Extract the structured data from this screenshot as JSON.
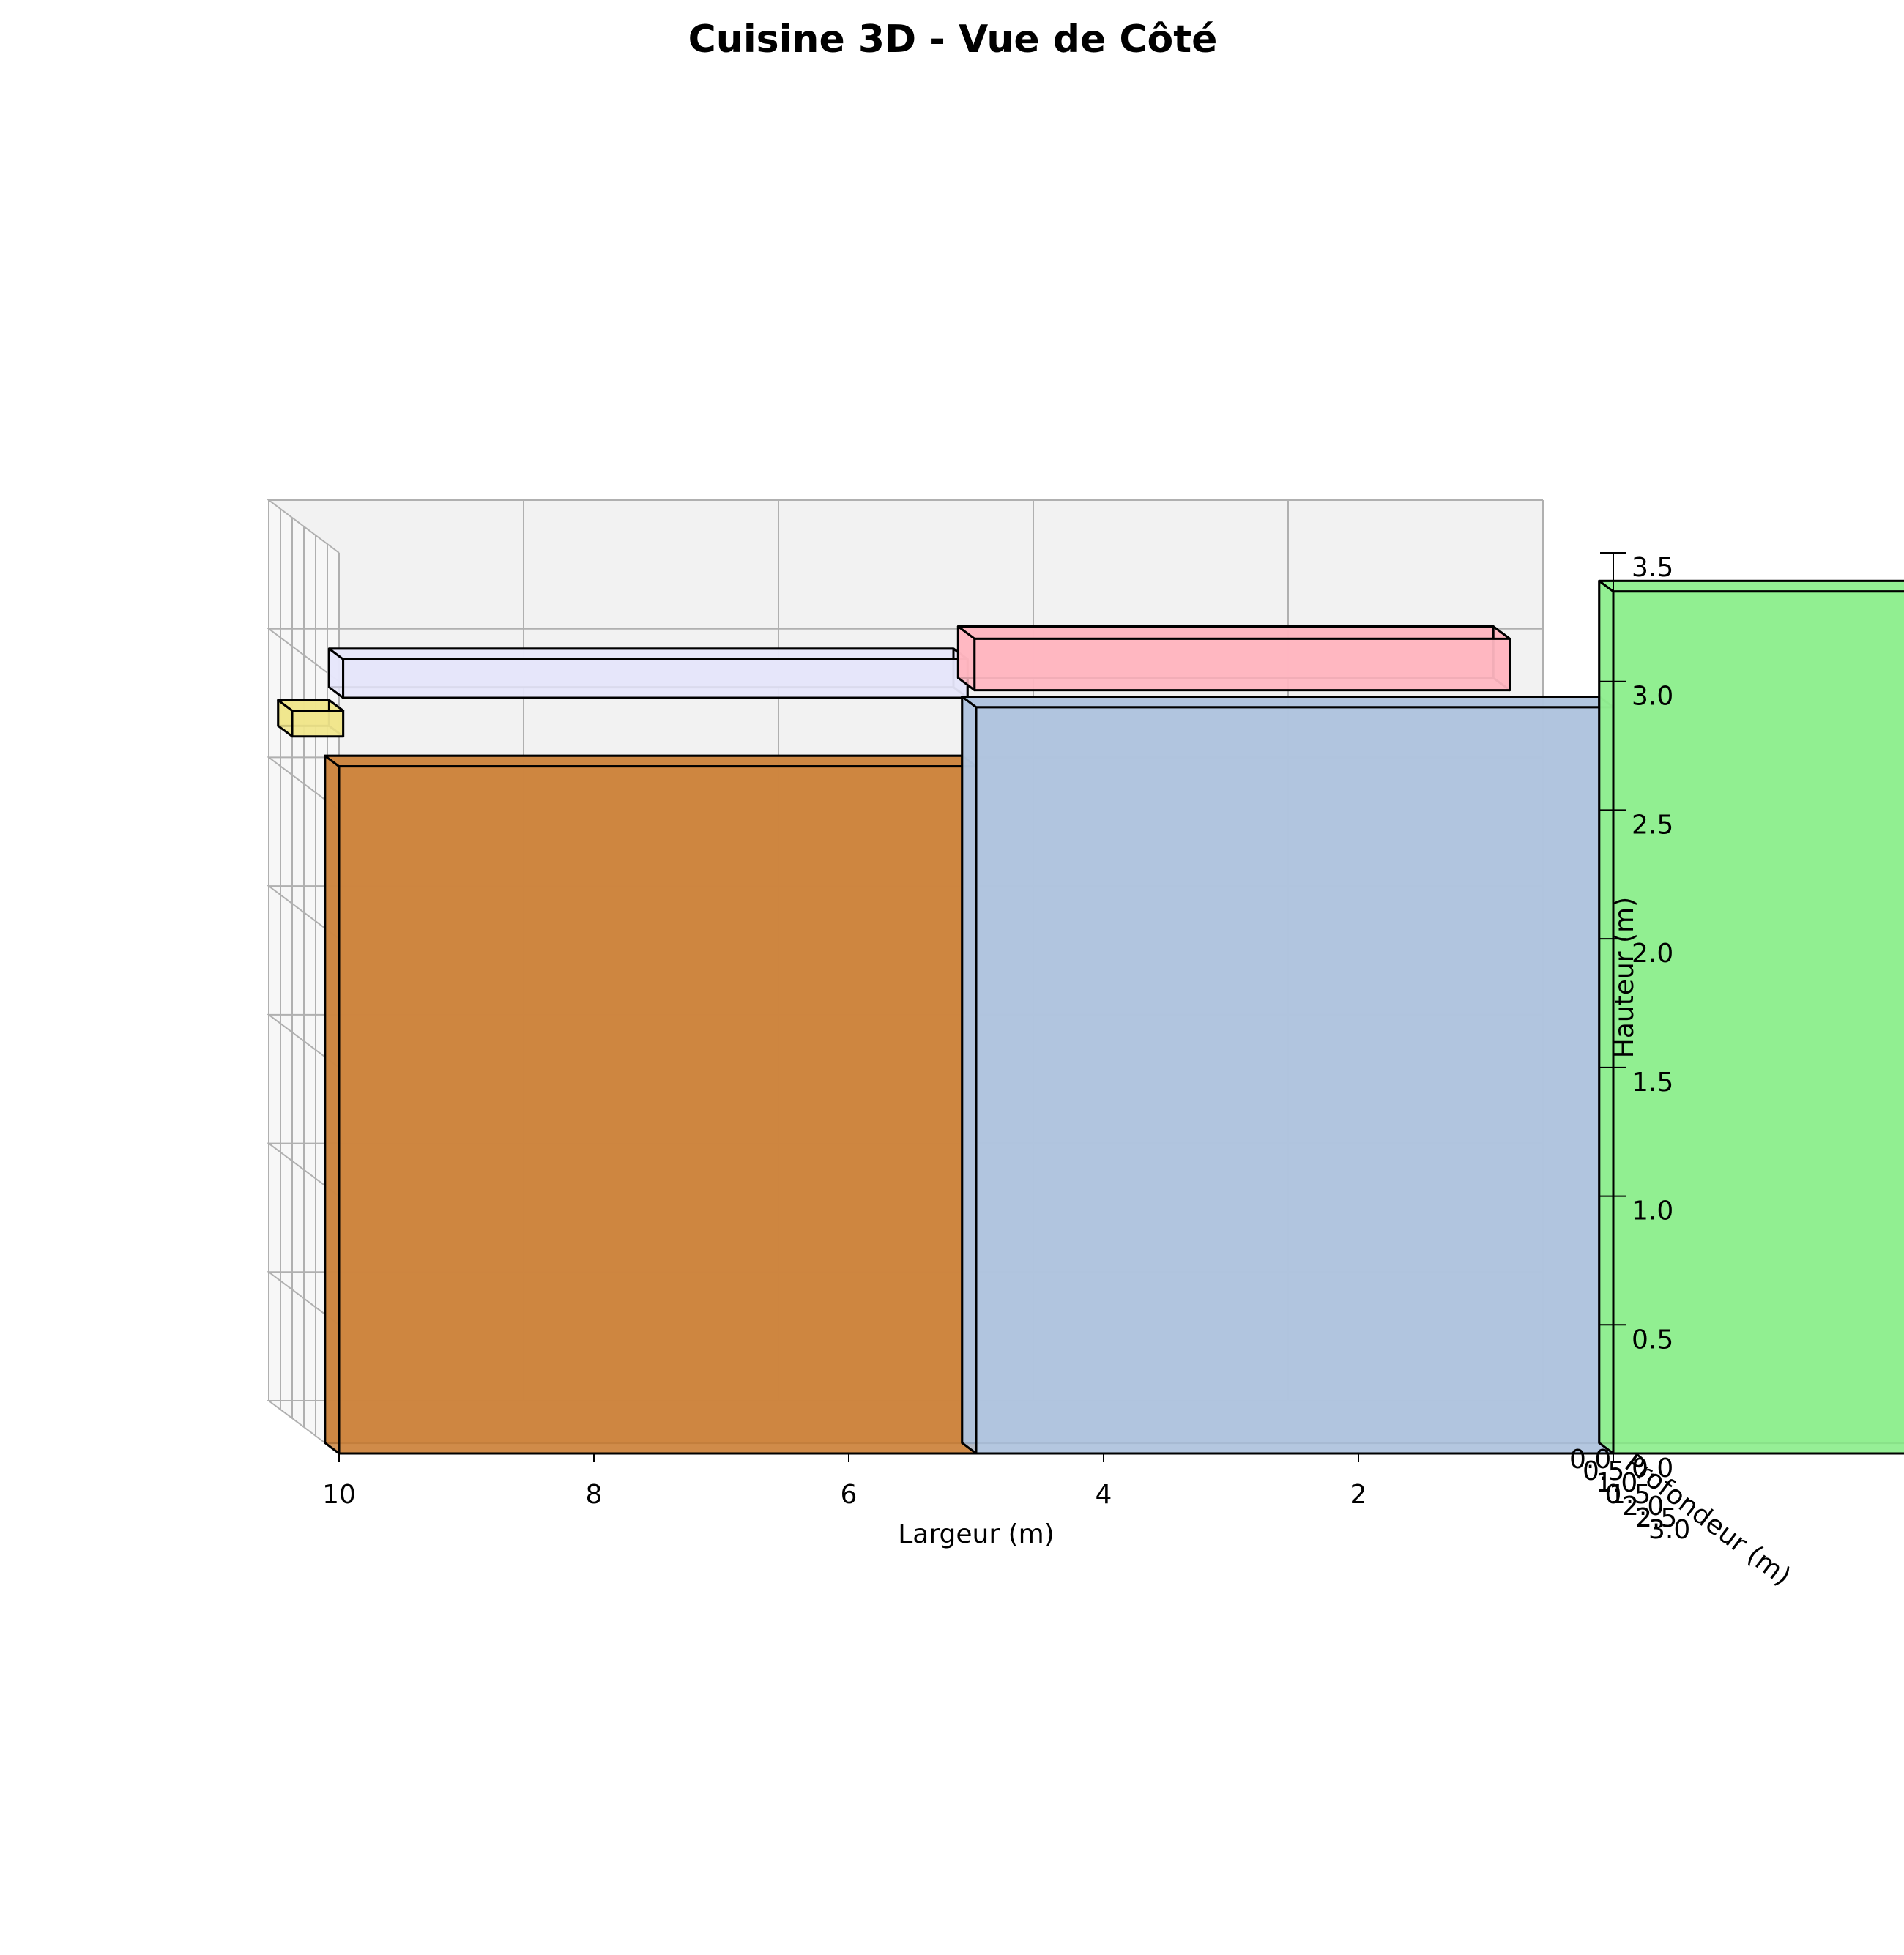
{
  "chart_data": {
    "type": "3d-box",
    "title": "Cuisine 3D - Vue de Côté",
    "xlabel": "Largeur (m)",
    "ylabel": "Profondeur (m)",
    "zlabel": "Hauteur (m)",
    "xlim": [
      0,
      10
    ],
    "ylim": [
      0,
      3.0
    ],
    "zlim": [
      0,
      3.5
    ],
    "x_inverted": true,
    "x_ticks": [
      "10",
      "8",
      "6",
      "4",
      "2",
      "0"
    ],
    "y_ticks": [
      "0.0",
      "0.5",
      "1.0",
      "1.5",
      "2.0",
      "2.5",
      "3.0"
    ],
    "z_ticks": [
      "0.0",
      "0.5",
      "1.0",
      "1.5",
      "2.0",
      "2.5",
      "3.0",
      "3.5"
    ],
    "grid": true,
    "view": "side",
    "boxes": [
      {
        "x": [
          4.7,
          9.6
        ],
        "y": [
          2.0,
          2.6
        ],
        "z": [
          2.8,
          2.95
        ],
        "color": "#e6e6fa"
      },
      {
        "x": [
          9.6,
          10.0
        ],
        "y": [
          2.0,
          2.6
        ],
        "z": [
          2.65,
          2.75
        ],
        "color": "#f0e68c"
      },
      {
        "x": [
          0.5,
          4.7
        ],
        "y": [
          1.7,
          2.4
        ],
        "z": [
          2.85,
          3.05
        ],
        "color": "#ffb6c1"
      },
      {
        "x": [
          5.0,
          10.0
        ],
        "y": [
          0.0,
          0.6
        ],
        "z": [
          0.0,
          2.67
        ],
        "color": "#cd853f"
      },
      {
        "x": [
          0.0,
          5.0
        ],
        "y": [
          0.0,
          0.6
        ],
        "z": [
          0.0,
          2.9
        ],
        "color": "#b0c4de"
      },
      {
        "x": [
          -2.5,
          0.0
        ],
        "y": [
          0.0,
          0.6
        ],
        "z": [
          0.0,
          3.35
        ],
        "color": "#90ee90"
      }
    ]
  }
}
